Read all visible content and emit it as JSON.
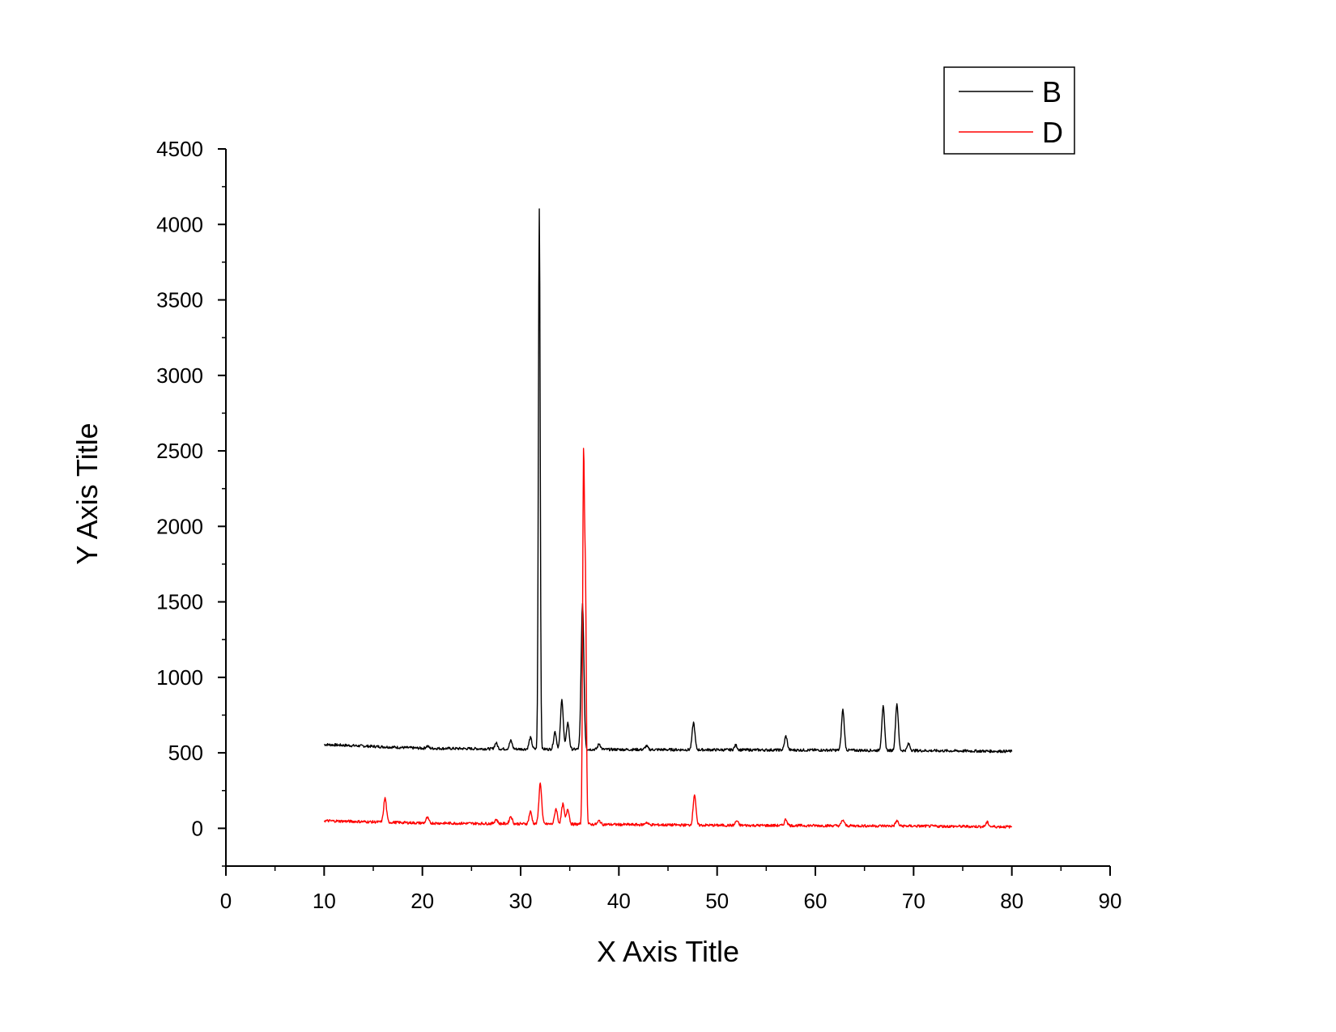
{
  "chart_data": {
    "type": "line",
    "xlabel": "X Axis Title",
    "ylabel": "Y Axis Title",
    "xlim": [
      0,
      90
    ],
    "ylim": [
      -250,
      4500
    ],
    "x_major_ticks": [
      0,
      10,
      20,
      30,
      40,
      50,
      60,
      70,
      80,
      90
    ],
    "y_major_ticks": [
      0,
      500,
      1000,
      1500,
      2000,
      2500,
      3000,
      3500,
      4000,
      4500
    ],
    "grid": false,
    "legend": "top-right",
    "series": [
      {
        "name": "B",
        "color": "#000000",
        "baseline": [
          [
            10,
            555
          ],
          [
            20,
            530
          ],
          [
            30,
            525
          ],
          [
            40,
            522
          ],
          [
            50,
            520
          ],
          [
            60,
            518
          ],
          [
            70,
            515
          ],
          [
            80,
            510
          ]
        ],
        "peaks": [
          [
            20.5,
            545
          ],
          [
            27.5,
            565
          ],
          [
            29.0,
            580
          ],
          [
            31.0,
            600
          ],
          [
            31.9,
            4110
          ],
          [
            33.5,
            640
          ],
          [
            34.2,
            850
          ],
          [
            34.8,
            700
          ],
          [
            36.3,
            1480
          ],
          [
            38.0,
            560
          ],
          [
            42.8,
            545
          ],
          [
            47.6,
            700
          ],
          [
            51.9,
            550
          ],
          [
            57.0,
            610
          ],
          [
            62.8,
            785
          ],
          [
            66.9,
            805
          ],
          [
            68.3,
            825
          ],
          [
            69.5,
            560
          ]
        ]
      },
      {
        "name": "D",
        "color": "#ff0000",
        "baseline": [
          [
            10,
            50
          ],
          [
            20,
            35
          ],
          [
            30,
            30
          ],
          [
            40,
            25
          ],
          [
            50,
            20
          ],
          [
            60,
            18
          ],
          [
            70,
            15
          ],
          [
            80,
            10
          ]
        ],
        "peaks": [
          [
            16.2,
            200
          ],
          [
            20.5,
            70
          ],
          [
            27.5,
            60
          ],
          [
            29.0,
            80
          ],
          [
            31.0,
            110
          ],
          [
            32.0,
            300
          ],
          [
            33.6,
            130
          ],
          [
            34.3,
            160
          ],
          [
            34.8,
            130
          ],
          [
            36.4,
            2380
          ],
          [
            36.6,
            1550
          ],
          [
            38.0,
            50
          ],
          [
            42.8,
            40
          ],
          [
            47.7,
            225
          ],
          [
            52.0,
            50
          ],
          [
            57.0,
            60
          ],
          [
            62.8,
            55
          ],
          [
            68.3,
            50
          ],
          [
            77.5,
            40
          ]
        ]
      }
    ]
  }
}
